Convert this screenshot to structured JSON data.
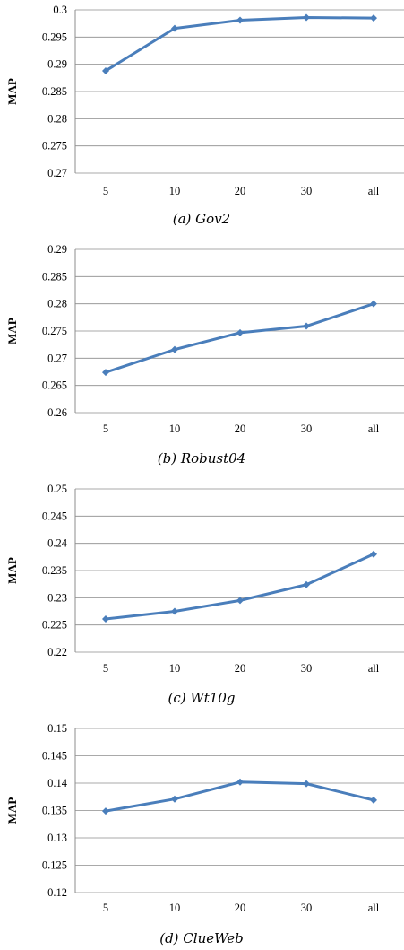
{
  "chart_data": [
    {
      "type": "line",
      "caption": "(a) Gov2",
      "categories": [
        "5",
        "10",
        "20",
        "30",
        "all"
      ],
      "series": [
        {
          "values": [
            0.2888,
            0.2966,
            0.2981,
            0.2986,
            0.2985
          ]
        }
      ],
      "ylabel": "MAP",
      "ylim": [
        0.27,
        0.3
      ],
      "yticks": [
        "0.27",
        "0.275",
        "0.28",
        "0.285",
        "0.29",
        "0.295",
        "0.3"
      ],
      "grid": true
    },
    {
      "type": "line",
      "caption": "(b) Robust04",
      "categories": [
        "5",
        "10",
        "20",
        "30",
        "all"
      ],
      "series": [
        {
          "values": [
            0.2674,
            0.2716,
            0.2747,
            0.2759,
            0.28
          ]
        }
      ],
      "ylabel": "MAP",
      "ylim": [
        0.26,
        0.29
      ],
      "yticks": [
        "0.26",
        "0.265",
        "0.27",
        "0.275",
        "0.28",
        "0.285",
        "0.29"
      ],
      "grid": true
    },
    {
      "type": "line",
      "caption": "(c) Wt10g",
      "categories": [
        "5",
        "10",
        "20",
        "30",
        "all"
      ],
      "series": [
        {
          "values": [
            0.2261,
            0.2275,
            0.2295,
            0.2324,
            0.238
          ]
        }
      ],
      "ylabel": "MAP",
      "ylim": [
        0.22,
        0.25
      ],
      "yticks": [
        "0.22",
        "0.225",
        "0.23",
        "0.235",
        "0.24",
        "0.245",
        "0.25"
      ],
      "grid": true
    },
    {
      "type": "line",
      "caption": "(d) ClueWeb",
      "categories": [
        "5",
        "10",
        "20",
        "30",
        "all"
      ],
      "series": [
        {
          "values": [
            0.1349,
            0.1371,
            0.1402,
            0.1399,
            0.1369
          ]
        }
      ],
      "ylabel": "MAP",
      "ylim": [
        0.12,
        0.15
      ],
      "yticks": [
        "0.12",
        "0.125",
        "0.13",
        "0.135",
        "0.14",
        "0.145",
        "0.15"
      ],
      "grid": true
    }
  ],
  "colors": {
    "series": "#4a7ebb",
    "grid": "#8c8c8c"
  }
}
